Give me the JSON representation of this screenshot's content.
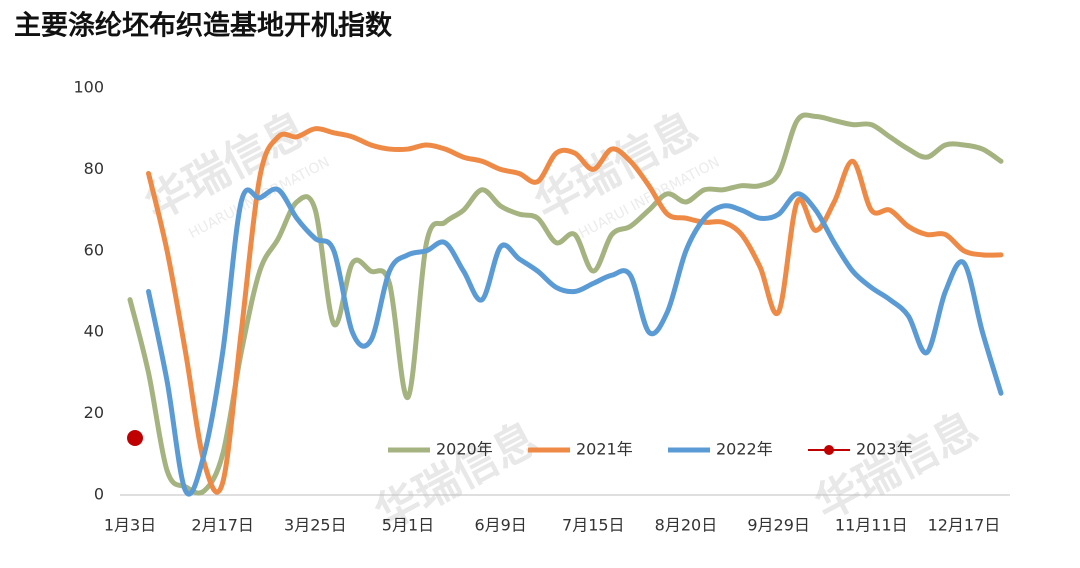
{
  "chart_data": {
    "type": "line",
    "title": "主要涤纶坯布织造基地开机指数",
    "watermark": "华瑞信息",
    "watermark_subtitle": "HUARUI INFORMATION",
    "categories": [
      "1月3日",
      null,
      null,
      null,
      null,
      "2月17日",
      null,
      null,
      null,
      null,
      "3月25日",
      null,
      null,
      null,
      null,
      "5月1日",
      null,
      null,
      null,
      null,
      "6月9日",
      null,
      null,
      null,
      null,
      "7月15日",
      null,
      null,
      null,
      null,
      "8月20日",
      null,
      null,
      null,
      null,
      "9月29日",
      null,
      null,
      null,
      null,
      "11月11日",
      null,
      null,
      null,
      null,
      "12月17日",
      null,
      null
    ],
    "ylim": [
      0,
      100
    ],
    "yticks": [
      0,
      20,
      40,
      60,
      80,
      100
    ],
    "grid": false,
    "legend": "lower right",
    "series": [
      {
        "name": "2020年",
        "color": "#a5b381",
        "values": [
          48,
          30,
          6,
          2,
          1,
          10,
          35,
          55,
          63,
          72,
          70,
          42,
          57,
          55,
          52,
          24,
          62,
          67,
          70,
          75,
          71,
          69,
          68,
          62,
          64,
          55,
          64,
          66,
          70,
          74,
          72,
          75,
          75,
          76,
          76,
          79,
          92,
          93,
          92,
          91,
          91,
          88,
          85,
          83,
          86,
          86,
          85,
          82
        ]
      },
      {
        "name": "2021年",
        "color": "#ee8a45",
        "values": [
          null,
          79,
          60,
          35,
          8,
          3,
          40,
          78,
          88,
          88,
          90,
          89,
          88,
          86,
          85,
          85,
          86,
          85,
          83,
          82,
          80,
          79,
          77,
          84,
          84,
          80,
          85,
          82,
          76,
          69,
          68,
          67,
          67,
          64,
          56,
          45,
          72,
          65,
          72,
          82,
          70,
          70,
          66,
          64,
          64,
          60,
          59,
          59
        ]
      },
      {
        "name": "2022年",
        "color": "#5b9bd5",
        "values": [
          null,
          50,
          28,
          1,
          10,
          35,
          72,
          73,
          75,
          68,
          63,
          60,
          40,
          38,
          55,
          59,
          60,
          62,
          55,
          48,
          61,
          58,
          55,
          51,
          50,
          52,
          54,
          54,
          40,
          45,
          60,
          68,
          71,
          70,
          68,
          69,
          74,
          70,
          62,
          55,
          51,
          48,
          44,
          35,
          50,
          57,
          40,
          25
        ]
      },
      {
        "name": "2023年",
        "color": "#c00000",
        "markers": true,
        "values": [
          14,
          null,
          null,
          null,
          null,
          null,
          null,
          null,
          null,
          null,
          null,
          null,
          null,
          null,
          null,
          null,
          null,
          null,
          null,
          null,
          null,
          null,
          null,
          null,
          null,
          null,
          null,
          null,
          null,
          null,
          null,
          null,
          null,
          null,
          null,
          null,
          null,
          null,
          null,
          null,
          null,
          null,
          null,
          null,
          null,
          null,
          null,
          null
        ]
      }
    ]
  }
}
